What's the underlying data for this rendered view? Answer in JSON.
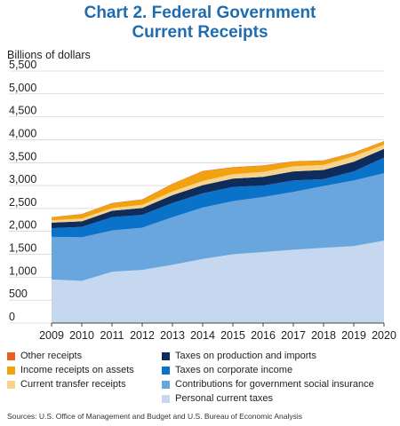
{
  "chart_data": {
    "type": "area",
    "stacked": true,
    "title": "Chart 2. Federal Government",
    "title_line2": "Current Receipts",
    "ylabel": "Billions of dollars",
    "xlabel": "",
    "ylim": [
      0,
      5500
    ],
    "yticks": [
      0,
      500,
      1000,
      1500,
      2000,
      2500,
      3000,
      3500,
      4000,
      4500,
      5000,
      5500
    ],
    "ytick_labels": [
      "0",
      "500",
      "1,000",
      "1,500",
      "2,000",
      "2,500",
      "3,000",
      "3,500",
      "4,000",
      "4,500",
      "5,000",
      "5,500"
    ],
    "x": [
      "2009",
      "2010",
      "2011",
      "2012",
      "2013",
      "2014",
      "2015",
      "2016",
      "2017",
      "2018",
      "2019",
      "2020"
    ],
    "grid": true,
    "legend_position": "bottom",
    "series": [
      {
        "name": "Personal current taxes",
        "color": "#c5d8ef",
        "values": [
          950,
          920,
          1120,
          1160,
          1270,
          1400,
          1500,
          1550,
          1600,
          1640,
          1680,
          1800
        ]
      },
      {
        "name": "Contributions for government social insurance",
        "color": "#6aa6de",
        "values": [
          930,
          950,
          900,
          920,
          1040,
          1120,
          1160,
          1200,
          1260,
          1350,
          1430,
          1470
        ]
      },
      {
        "name": "Taxes on corporate income",
        "color": "#0b72c9",
        "values": [
          190,
          230,
          290,
          280,
          310,
          310,
          310,
          250,
          250,
          150,
          200,
          340
        ]
      },
      {
        "name": "Taxes on production and imports",
        "color": "#0f2d5c",
        "values": [
          120,
          120,
          140,
          150,
          170,
          180,
          180,
          190,
          200,
          200,
          210,
          190
        ]
      },
      {
        "name": "Current transfer receipts",
        "color": "#f7d38e",
        "values": [
          50,
          60,
          60,
          70,
          80,
          90,
          100,
          110,
          110,
          110,
          120,
          90
        ]
      },
      {
        "name": "Income receipts on assets",
        "color": "#f2a20c",
        "values": [
          60,
          90,
          100,
          110,
          160,
          210,
          140,
          130,
          100,
          90,
          70,
          70
        ]
      },
      {
        "name": "Other receipts",
        "color": "#e8601e",
        "values": [
          10,
          10,
          10,
          10,
          10,
          10,
          10,
          10,
          10,
          10,
          10,
          10
        ]
      }
    ],
    "legend_left": [
      {
        "name": "Other receipts",
        "color": "#e8601e"
      },
      {
        "name": "Income receipts on assets",
        "color": "#f2a20c"
      },
      {
        "name": "Current transfer receipts",
        "color": "#f7d38e"
      }
    ],
    "legend_right": [
      {
        "name": "Taxes on production and imports",
        "color": "#0f2d5c"
      },
      {
        "name": "Taxes on corporate income",
        "color": "#0b72c9"
      },
      {
        "name": "Contributions for government social insurance",
        "color": "#6aa6de"
      },
      {
        "name": "Personal current taxes",
        "color": "#c5d8ef"
      }
    ],
    "source": "Sources: U.S. Office of Management and Budget and U.S. Bureau of Economic Analysis"
  }
}
